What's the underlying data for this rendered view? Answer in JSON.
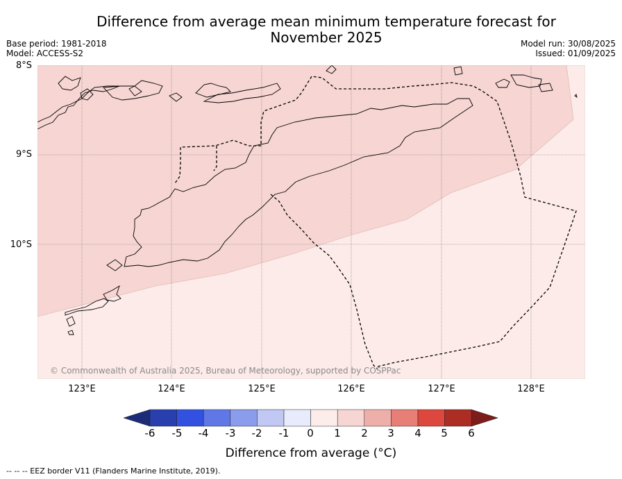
{
  "title_line1": "Difference from average mean minimum temperature forecast for",
  "title_line2": "November 2025",
  "meta": {
    "base_period": "Base period: 1981-2018",
    "model": "Model: ACCESS-S2",
    "model_run": "Model run: 30/08/2025",
    "issued": "Issued: 01/09/2025"
  },
  "lat_labels": [
    "8°S",
    "9°S",
    "10°S"
  ],
  "lon_labels": [
    "123°E",
    "124°E",
    "125°E",
    "126°E",
    "127°E",
    "128°E"
  ],
  "copyright": "© Commonwealth of Australia 2025, Bureau of Meteorology, supported by COSPPac",
  "colorbar": {
    "ticks": [
      "-6",
      "-5",
      "-4",
      "-3",
      "-2",
      "-1",
      "0",
      "1",
      "2",
      "3",
      "4",
      "5",
      "6"
    ],
    "colors": [
      "#1c2c78",
      "#2a3fae",
      "#3351e0",
      "#5f78e6",
      "#8a9ceb",
      "#c0c8f3",
      "#e8ebfb",
      "#fcecea",
      "#f6d5d2",
      "#eeafaa",
      "#e77f76",
      "#dc483e",
      "#ab2d24",
      "#7d1d1a"
    ],
    "label": "Difference from average (°C)"
  },
  "map_colors": {
    "zone_0_to_1": "#fcebe8",
    "zone_1_to_2": "#f6d5d2"
  },
  "footnote": "--  --  -- EEZ border V11 (Flanders Marine Institute, 2019)."
}
